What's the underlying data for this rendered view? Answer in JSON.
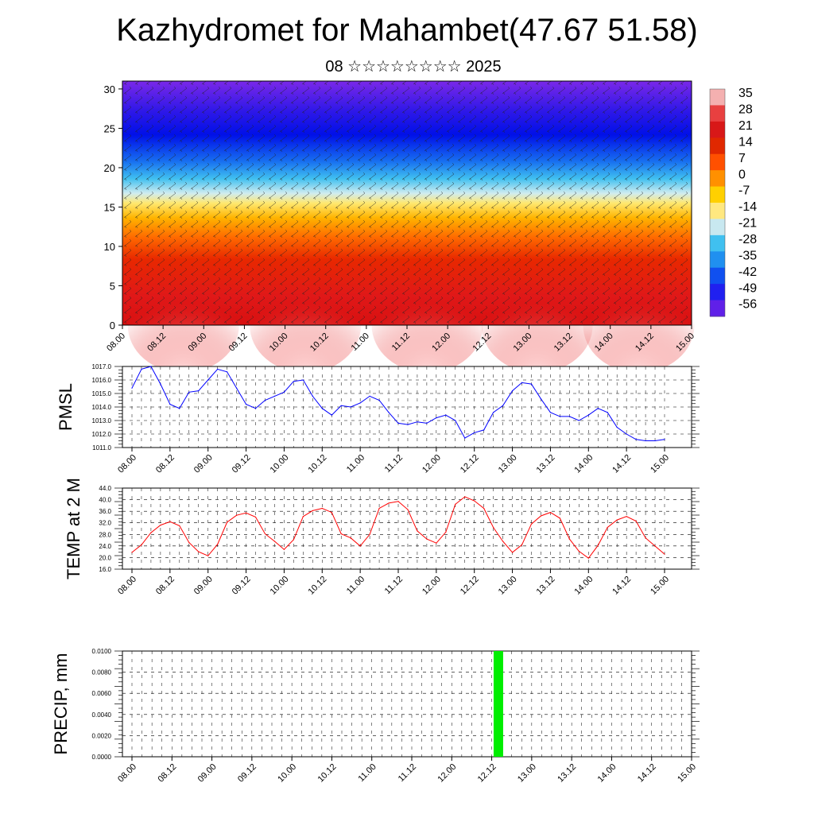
{
  "title": "Kazhydromet for Mahambet(47.67 51.58)",
  "subtitle": "08 ☆☆☆☆☆☆☆☆ 2025",
  "chart_data": [
    {
      "id": "cross-section",
      "type": "heatmap",
      "description_values": "temperature vs height with wind barbs",
      "y_ticks": [
        "0",
        "5",
        "10",
        "15",
        "20",
        "25",
        "30"
      ],
      "ylim": [
        0,
        31
      ],
      "x_ticks": [
        "08.00",
        "08.12",
        "09.00",
        "09.12",
        "10.00",
        "10.12",
        "11.00",
        "11.12",
        "12.00",
        "12.12",
        "13.00",
        "13.12",
        "14.00",
        "14.12",
        "15.00"
      ],
      "colorbar": {
        "labels": [
          "35",
          "28",
          "21",
          "14",
          "7",
          "0",
          "-7",
          "-14",
          "-21",
          "-28",
          "-35",
          "-42",
          "-49",
          "-56"
        ],
        "colors": [
          "#f4b0b0",
          "#e84040",
          "#d81818",
          "#e02800",
          "#ff5000",
          "#ff9000",
          "#ffd000",
          "#ffe880",
          "#c8e8f0",
          "#40c0f0",
          "#2090f0",
          "#1050f0",
          "#2020f0",
          "#6020e8"
        ]
      }
    },
    {
      "id": "pmsl",
      "type": "line",
      "ylabel": "PMSL",
      "y_ticks": [
        "1011.0",
        "1012.0",
        "1013.0",
        "1014.0",
        "1015.0",
        "1016.0",
        "1017.0"
      ],
      "ylim": [
        1011,
        1017
      ],
      "x_ticks": [
        "08.00",
        "08.12",
        "09.00",
        "09.12",
        "10.00",
        "10.12",
        "11.00",
        "11.12",
        "12.00",
        "12.12",
        "13.00",
        "13.12",
        "14.00",
        "14.12",
        "15.00"
      ],
      "color": "#0000ff",
      "x_hours": [
        0,
        3,
        6,
        9,
        12,
        15,
        18,
        21,
        24,
        27,
        30,
        33,
        36,
        39,
        42,
        45,
        48,
        51,
        54,
        57,
        60,
        63,
        66,
        69,
        72,
        75,
        78,
        81,
        84,
        87,
        90,
        93,
        96,
        99,
        102,
        105,
        108,
        111,
        114,
        117,
        120,
        123,
        126,
        129,
        132,
        135,
        138,
        141,
        144,
        147,
        150,
        153,
        156,
        159,
        162,
        165,
        168
      ],
      "values": [
        1015.4,
        1016.8,
        1017.0,
        1015.7,
        1014.2,
        1013.9,
        1015.1,
        1015.2,
        1016.0,
        1016.8,
        1016.6,
        1015.4,
        1014.2,
        1013.9,
        1014.5,
        1014.8,
        1015.1,
        1015.9,
        1016.0,
        1014.8,
        1013.9,
        1013.4,
        1014.1,
        1014.0,
        1014.3,
        1014.8,
        1014.5,
        1013.6,
        1012.8,
        1012.7,
        1012.9,
        1012.8,
        1013.2,
        1013.4,
        1013.0,
        1011.7,
        1012.1,
        1012.3,
        1013.6,
        1014.1,
        1015.2,
        1015.8,
        1015.7,
        1014.6,
        1013.6,
        1013.3,
        1013.3,
        1013.0,
        1013.4,
        1013.9,
        1013.6,
        1012.5,
        1012.0,
        1011.6,
        1011.5,
        1011.5,
        1011.6
      ]
    },
    {
      "id": "temp2m",
      "type": "line",
      "ylabel": "TEMP at 2 M",
      "y_ticks": [
        "16.0",
        "20.0",
        "24.0",
        "28.0",
        "32.0",
        "36.0",
        "40.0",
        "44.0"
      ],
      "ylim": [
        16,
        44
      ],
      "x_ticks": [
        "08.00",
        "08.12",
        "09.00",
        "09.12",
        "10.00",
        "10.12",
        "11.00",
        "11.12",
        "12.00",
        "12.12",
        "13.00",
        "13.12",
        "14.00",
        "14.12",
        "15.00"
      ],
      "color": "#ff0000",
      "x_hours": [
        0,
        3,
        6,
        9,
        12,
        15,
        18,
        21,
        24,
        27,
        30,
        33,
        36,
        39,
        42,
        45,
        48,
        51,
        54,
        57,
        60,
        63,
        66,
        69,
        72,
        75,
        78,
        81,
        84,
        87,
        90,
        93,
        96,
        99,
        102,
        105,
        108,
        111,
        114,
        117,
        120,
        123,
        126,
        129,
        132,
        135,
        138,
        141,
        144,
        147,
        150,
        153,
        156,
        159,
        162,
        165,
        168
      ],
      "values": [
        21.8,
        24.4,
        28.6,
        31.2,
        32.4,
        31.0,
        25.2,
        22.0,
        20.6,
        24.6,
        32.2,
        34.6,
        35.4,
        34.0,
        28.2,
        25.6,
        22.8,
        26.2,
        34.2,
        36.2,
        37.0,
        35.6,
        28.2,
        26.8,
        24.0,
        28.0,
        37.0,
        38.8,
        39.4,
        36.6,
        29.2,
        26.4,
        25.0,
        28.8,
        38.4,
        41.0,
        39.6,
        37.0,
        30.4,
        25.6,
        21.8,
        24.4,
        31.6,
        34.4,
        35.6,
        33.6,
        26.4,
        22.2,
        19.8,
        24.2,
        30.4,
        33.0,
        34.2,
        32.6,
        26.8,
        24.0,
        21.2
      ]
    },
    {
      "id": "precip",
      "type": "bar",
      "ylabel": "PRECIP, mm",
      "y_ticks": [
        "0.0000",
        "0.0020",
        "0.0040",
        "0.0060",
        "0.0080",
        "0.0100"
      ],
      "ylim": [
        0,
        0.01
      ],
      "x_ticks": [
        "08.00",
        "08.12",
        "09.00",
        "09.12",
        "10.00",
        "10.12",
        "11.00",
        "11.12",
        "12.00",
        "12.12",
        "13.00",
        "13.12",
        "14.00",
        "14.12",
        "15.00"
      ],
      "color": "#00ee00",
      "bars": [
        {
          "x_hour": 110,
          "value": 0.01
        }
      ]
    }
  ]
}
